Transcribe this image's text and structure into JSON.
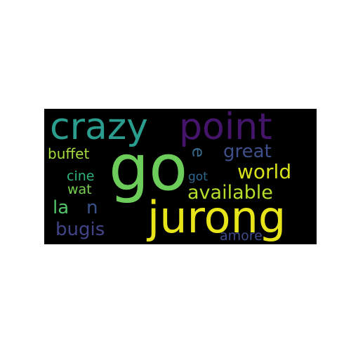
{
  "wordcloud": {
    "background": "#000000",
    "words": {
      "crazy": {
        "text": "crazy",
        "color": "#2a9d8f"
      },
      "point": {
        "text": "point",
        "color": "#45156c"
      },
      "go": {
        "text": "go",
        "color": "#6ccd5a"
      },
      "great": {
        "text": "great",
        "color": "#3e4f8a"
      },
      "e": {
        "text": "e",
        "color": "#3a6a8b"
      },
      "buffet": {
        "text": "buffet",
        "color": "#a9dc3e"
      },
      "world": {
        "text": "world",
        "color": "#d8e21b"
      },
      "cine": {
        "text": "cine",
        "color": "#2fb47c"
      },
      "got": {
        "text": "got",
        "color": "#31678e"
      },
      "wat": {
        "text": "wat",
        "color": "#7ad151"
      },
      "available": {
        "text": "available",
        "color": "#b6de2b"
      },
      "la": {
        "text": "la",
        "color": "#52c569"
      },
      "n": {
        "text": "n",
        "color": "#3b528b"
      },
      "jurong": {
        "text": "jurong",
        "color": "#e7e419"
      },
      "bugis": {
        "text": "bugis",
        "color": "#414487"
      },
      "amore": {
        "text": "amore",
        "color": "#3f4a89"
      }
    }
  }
}
